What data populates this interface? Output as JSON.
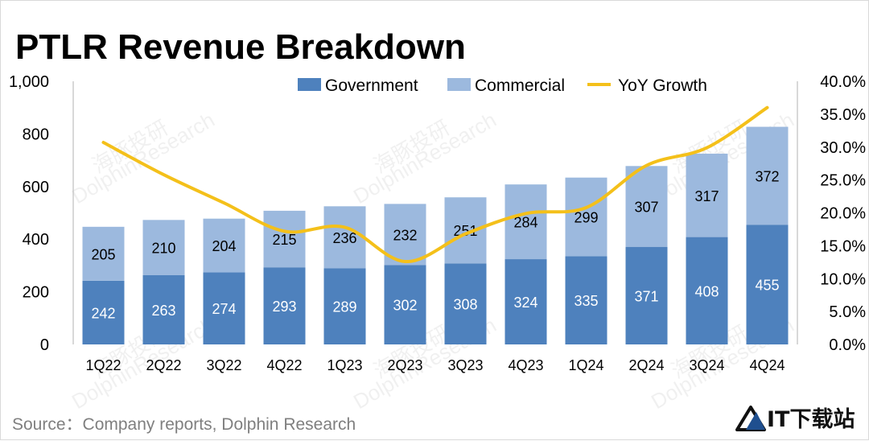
{
  "chart_data": {
    "type": "bar",
    "stacked": true,
    "title": "PTLR Revenue Breakdown",
    "categories": [
      "1Q22",
      "2Q22",
      "3Q22",
      "4Q22",
      "1Q23",
      "2Q23",
      "3Q23",
      "4Q23",
      "1Q24",
      "2Q24",
      "3Q24",
      "4Q24"
    ],
    "series": [
      {
        "name": "Government",
        "values": [
          242,
          263,
          274,
          293,
          289,
          302,
          308,
          324,
          335,
          371,
          408,
          455
        ],
        "color": "#4e81bd"
      },
      {
        "name": "Commercial",
        "values": [
          205,
          210,
          204,
          215,
          236,
          232,
          251,
          284,
          299,
          307,
          317,
          372
        ],
        "color": "#9cb9de"
      }
    ],
    "line_series": {
      "name": "YoY Growth",
      "axis": "secondary",
      "color": "#f4c01a",
      "values": [
        0.307,
        0.258,
        0.215,
        0.172,
        0.178,
        0.126,
        0.168,
        0.199,
        0.208,
        0.272,
        0.299,
        0.36
      ]
    },
    "y_left": {
      "min": 0,
      "max": 1000,
      "ticks": [
        "0",
        "200",
        "400",
        "600",
        "800",
        "1,000"
      ]
    },
    "y_right": {
      "min": 0,
      "max": 0.4,
      "ticks": [
        "0.0%",
        "5.0%",
        "10.0%",
        "15.0%",
        "20.0%",
        "25.0%",
        "30.0%",
        "35.0%",
        "40.0%"
      ]
    },
    "legend_position": "top-right",
    "grid": false
  },
  "source_text": "Source：Company reports, Dolphin Research",
  "watermark": {
    "cn": "海豚投研",
    "en": "DolphinResearch"
  },
  "logo": {
    "text": "IT下载站",
    "icon": "triangle-logo-icon"
  }
}
